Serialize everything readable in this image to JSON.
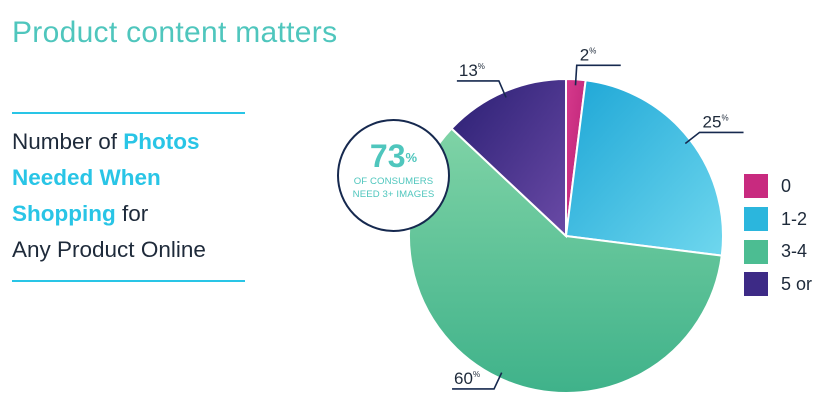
{
  "title": "Product content matters",
  "subtitle": {
    "part1": "Number of ",
    "highlight1": "Photos",
    "highlight2": "Needed When",
    "highlight3": "Shopping",
    "part2": " for",
    "part3": "Any Product Online"
  },
  "callout": {
    "value": "73",
    "unit": "%",
    "line1": "OF CONSUMERS",
    "line2": "NEED 3+ IMAGES"
  },
  "chart_data": {
    "type": "pie",
    "unit_label": "%",
    "slices": [
      {
        "label": "0",
        "value": 2,
        "color": "#c82a7f"
      },
      {
        "label": "1-2",
        "value": 25,
        "color": "#2bb6dd"
      },
      {
        "label": "3-4",
        "value": 60,
        "color": "#4cbd92"
      },
      {
        "label": "5 or",
        "value": 13,
        "color": "#3d2a86"
      }
    ],
    "legend": {
      "position": "right"
    },
    "colors": {
      "callout_border": "#16294f",
      "annotation_line": "#16294f",
      "accent": "#29c5e6"
    }
  }
}
